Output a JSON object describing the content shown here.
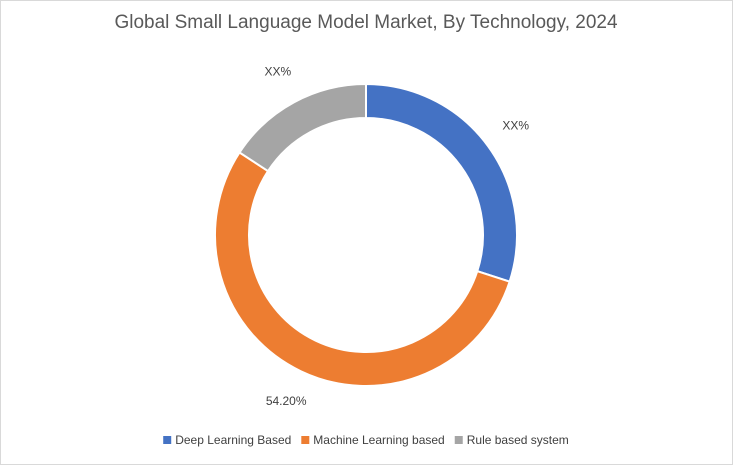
{
  "chart_data": {
    "type": "donut",
    "title": "Global Small Language Model Market, By Technology, 2024",
    "categories": [
      "Deep Learning Based",
      "Machine Learning based",
      "Rule based system"
    ],
    "values": [
      30,
      54.2,
      15.8
    ],
    "value_labels": [
      "XX%",
      "54.20%",
      "XX%"
    ],
    "colors": [
      "#4472c4",
      "#ed7d31",
      "#a5a5a5"
    ],
    "legend": "bottom"
  }
}
